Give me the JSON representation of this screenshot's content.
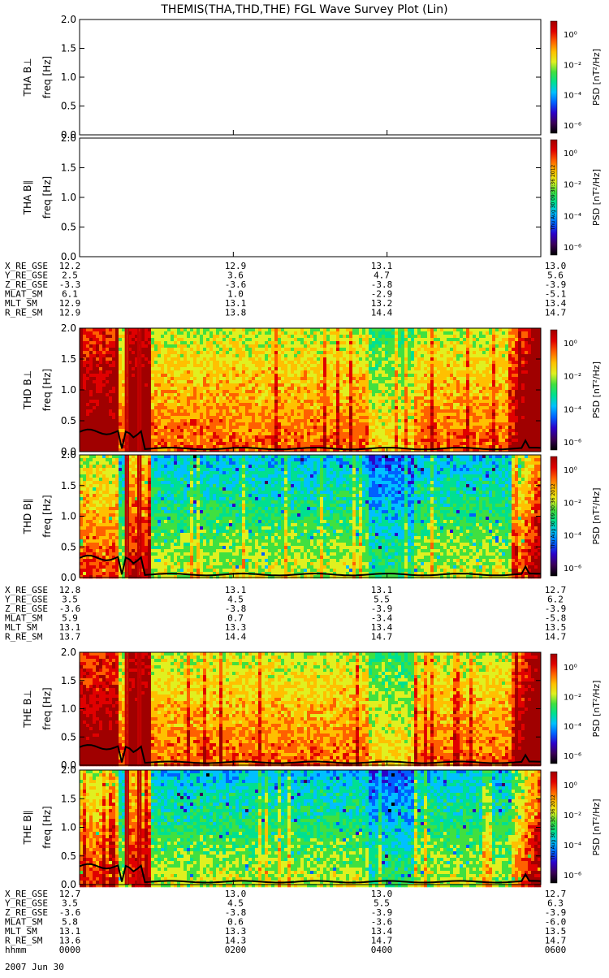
{
  "title": "THEMIS(THA,THD,THE) FGL Wave Survey Plot (Lin)",
  "colorbar": {
    "label": "PSD [nT²/Hz]",
    "ticks": [
      "10⁰",
      "10⁻²",
      "10⁻⁴",
      "10⁻⁶"
    ],
    "stamp": "Thu Aug 30 09:30:36 2012"
  },
  "colors": {
    "scale": [
      "#000000",
      "#3a0058",
      "#2c00c8",
      "#0060ff",
      "#00c0ff",
      "#00e090",
      "#40e040",
      "#e0f020",
      "#ffc000",
      "#ff6000",
      "#e00000",
      "#a00000"
    ],
    "trace": "#000000"
  },
  "chart_data": [
    {
      "type": "heatmap",
      "probe": "THA",
      "component": "perp",
      "ylabel": "THA B⊥",
      "yunit": "freq [Hz]",
      "yticks": [
        "0.0",
        "0.5",
        "1.0",
        "1.5",
        "2.0"
      ],
      "ylim": [
        0,
        2
      ],
      "has_data": false
    },
    {
      "type": "heatmap",
      "probe": "THA",
      "component": "par",
      "ylabel": "THA B∥",
      "yunit": "freq [Hz]",
      "yticks": [
        "0.0",
        "0.5",
        "1.0",
        "1.5",
        "2.0"
      ],
      "ylim": [
        0,
        2
      ],
      "has_data": false
    },
    {
      "type": "heatmap",
      "probe": "THD",
      "component": "perp",
      "ylabel": "THD B⊥",
      "yunit": "freq [Hz]",
      "yticks": [
        "0.0",
        "0.5",
        "1.0",
        "1.5",
        "2.0"
      ],
      "ylim": [
        0,
        2
      ],
      "has_data": true,
      "base_level": 0.62
    },
    {
      "type": "heatmap",
      "probe": "THD",
      "component": "par",
      "ylabel": "THD B∥",
      "yunit": "freq [Hz]",
      "yticks": [
        "0.0",
        "0.5",
        "1.0",
        "1.5",
        "2.0"
      ],
      "ylim": [
        0,
        2
      ],
      "has_data": true,
      "base_level": 0.42
    },
    {
      "type": "heatmap",
      "probe": "THE",
      "component": "perp",
      "ylabel": "THE B⊥",
      "yunit": "freq [Hz]",
      "yticks": [
        "0.0",
        "0.5",
        "1.0",
        "1.5",
        "2.0"
      ],
      "ylim": [
        0,
        2
      ],
      "has_data": true,
      "base_level": 0.62
    },
    {
      "type": "heatmap",
      "probe": "THE",
      "component": "par",
      "ylabel": "THE B∥",
      "yunit": "freq [Hz]",
      "yticks": [
        "0.0",
        "0.5",
        "1.0",
        "1.5",
        "2.0"
      ],
      "ylim": [
        0,
        2
      ],
      "has_data": true,
      "base_level": 0.42
    }
  ],
  "ephemeris": [
    {
      "probe": "THA",
      "rows": [
        {
          "label": "X_RE_GSE",
          "values": [
            "12.2",
            "12.9",
            "13.1",
            "13.0"
          ]
        },
        {
          "label": "Y_RE_GSE",
          "values": [
            "2.5",
            "3.6",
            "4.7",
            "5.6"
          ]
        },
        {
          "label": "Z_RE_GSE",
          "values": [
            "-3.3",
            "-3.6",
            "-3.8",
            "-3.9"
          ]
        },
        {
          "label": "MLAT_SM",
          "values": [
            "6.1",
            "1.0",
            "-2.9",
            "-5.1"
          ]
        },
        {
          "label": "MLT_SM",
          "values": [
            "12.9",
            "13.1",
            "13.2",
            "13.4"
          ]
        },
        {
          "label": "R_RE_SM",
          "values": [
            "12.9",
            "13.8",
            "14.4",
            "14.7"
          ]
        }
      ]
    },
    {
      "probe": "THD",
      "rows": [
        {
          "label": "X_RE_GSE",
          "values": [
            "12.8",
            "13.1",
            "13.1",
            "12.7"
          ]
        },
        {
          "label": "Y_RE_GSE",
          "values": [
            "3.5",
            "4.5",
            "5.5",
            "6.2"
          ]
        },
        {
          "label": "Z_RE_GSE",
          "values": [
            "-3.6",
            "-3.8",
            "-3.9",
            "-3.9"
          ]
        },
        {
          "label": "MLAT_SM",
          "values": [
            "5.9",
            "0.7",
            "-3.4",
            "-5.8"
          ]
        },
        {
          "label": "MLT_SM",
          "values": [
            "13.1",
            "13.3",
            "13.4",
            "13.5"
          ]
        },
        {
          "label": "R_RE_SM",
          "values": [
            "13.7",
            "14.4",
            "14.7",
            "14.7"
          ]
        }
      ]
    },
    {
      "probe": "THE",
      "rows": [
        {
          "label": "X_RE_GSE",
          "values": [
            "12.7",
            "13.0",
            "13.0",
            "12.7"
          ]
        },
        {
          "label": "Y_RE_GSE",
          "values": [
            "3.5",
            "4.5",
            "5.5",
            "6.3"
          ]
        },
        {
          "label": "Z_RE_GSE",
          "values": [
            "-3.6",
            "-3.8",
            "-3.9",
            "-3.9"
          ]
        },
        {
          "label": "MLAT_SM",
          "values": [
            "5.8",
            "0.6",
            "-3.6",
            "-6.0"
          ]
        },
        {
          "label": "MLT_SM",
          "values": [
            "13.1",
            "13.3",
            "13.4",
            "13.5"
          ]
        },
        {
          "label": "R_RE_SM",
          "values": [
            "13.6",
            "14.3",
            "14.7",
            "14.7"
          ]
        },
        {
          "label": "hhmm",
          "values": [
            "0000",
            "0200",
            "0400",
            "0600"
          ]
        }
      ]
    }
  ],
  "date_label": "2007 Jun 30"
}
